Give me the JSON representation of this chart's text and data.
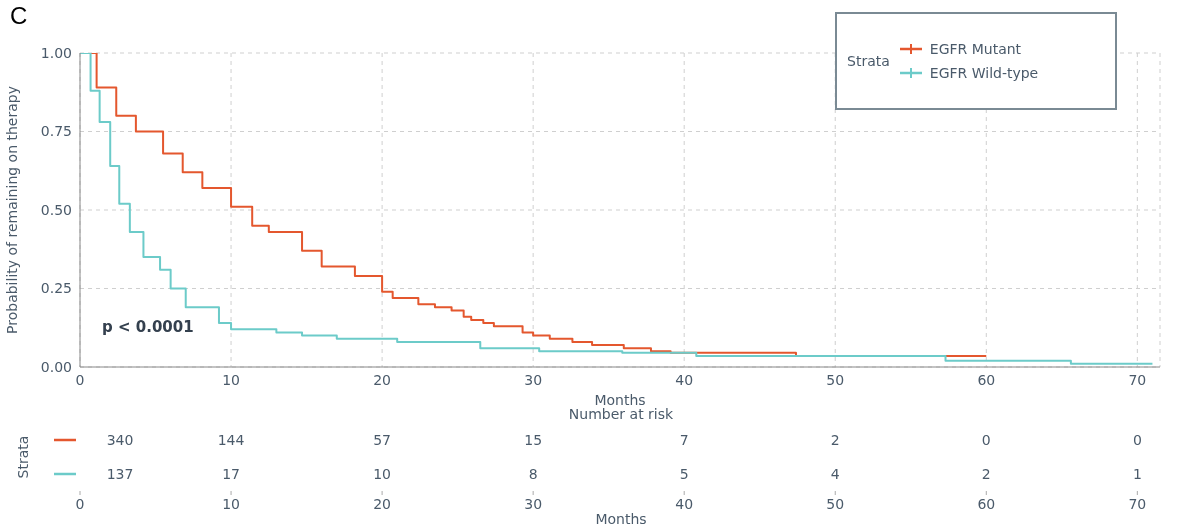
{
  "chart_data": [
    {
      "type": "step",
      "title": "C",
      "xlabel": "Months",
      "ylabel": "Probability of remaining on therapy",
      "legend_title": "Strata",
      "legend": "top right",
      "grid": true,
      "line_style": "solid",
      "xlim": [
        0,
        71.5
      ],
      "xticks": [
        0,
        10,
        20,
        30,
        40,
        50,
        60,
        70
      ],
      "ylim": [
        0,
        1
      ],
      "yticks": [
        {
          "value": 0,
          "label": "0.00"
        },
        {
          "value": 0.25,
          "label": "0.25"
        },
        {
          "value": 0.5,
          "label": "0.50"
        },
        {
          "value": 0.75,
          "label": "0.75"
        },
        {
          "value": 1,
          "label": "1.00"
        }
      ],
      "annotations": [
        "p < 0.0001"
      ],
      "series": [
        {
          "name": "EGFR Mutant",
          "color": "#e4572e",
          "x": [
            0,
            1.1,
            2.4,
            3.7,
            5.5,
            6.8,
            8.1,
            10,
            11.4,
            12.5,
            14.7,
            16,
            18.2,
            20,
            20.7,
            22.4,
            23.5,
            24.6,
            25.4,
            25.9,
            26.7,
            27.4,
            29.3,
            30,
            31.1,
            32.6,
            33.9,
            36,
            37.8,
            39.1,
            47.4,
            60
          ],
          "values": [
            1,
            0.89,
            0.8,
            0.75,
            0.68,
            0.62,
            0.57,
            0.51,
            0.45,
            0.43,
            0.37,
            0.32,
            0.29,
            0.24,
            0.22,
            0.2,
            0.19,
            0.18,
            0.16,
            0.15,
            0.14,
            0.13,
            0.11,
            0.1,
            0.09,
            0.08,
            0.07,
            0.06,
            0.05,
            0.045,
            0.035,
            0.035
          ]
        },
        {
          "name": "EGFR Wild-type",
          "color": "#6ccbc9",
          "x": [
            0,
            0.7,
            1.3,
            2,
            2.6,
            3.3,
            4.2,
            5.3,
            6,
            7,
            9.2,
            10,
            13,
            14.7,
            17,
            21,
            26.5,
            30.4,
            35.9,
            40.8,
            57.3,
            65.6,
            71
          ],
          "values": [
            1,
            0.88,
            0.78,
            0.64,
            0.52,
            0.43,
            0.35,
            0.31,
            0.25,
            0.19,
            0.14,
            0.12,
            0.11,
            0.1,
            0.09,
            0.08,
            0.06,
            0.05,
            0.045,
            0.035,
            0.02,
            0.01,
            0.01
          ]
        }
      ]
    },
    {
      "type": "heatmap",
      "title": "Number at risk",
      "ylabel": "Strata",
      "xlabel": "Months",
      "data_labels": true,
      "categories": [
        "0",
        "10",
        "20",
        "30",
        "40",
        "50",
        "60",
        "70"
      ],
      "y_categories": [
        null,
        null
      ],
      "colors": [
        "#e4572e",
        "#6ccbc9"
      ],
      "cells": [
        [
          340,
          144,
          57,
          15,
          7,
          2,
          0,
          0
        ],
        [
          137,
          17,
          10,
          8,
          5,
          4,
          2,
          1
        ]
      ]
    }
  ]
}
